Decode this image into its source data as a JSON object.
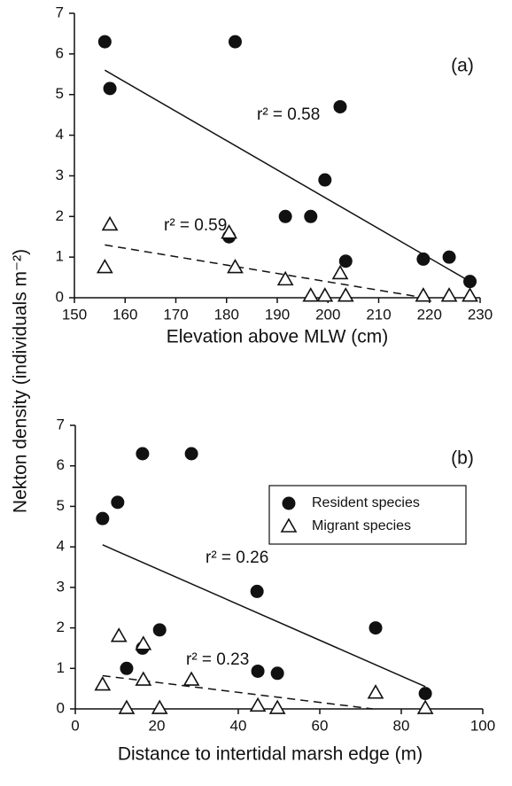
{
  "chart_data": [
    {
      "type": "scatter",
      "panel_label": "(a)",
      "x_label": "Elevation above MLW (cm)",
      "y_label": "Nekton density (individuals m⁻²)",
      "xlim": [
        150,
        230
      ],
      "xticks": [
        150,
        160,
        170,
        180,
        190,
        200,
        210,
        220,
        230
      ],
      "ylim": [
        0,
        7
      ],
      "yticks": [
        0,
        1,
        2,
        3,
        4,
        5,
        6,
        7
      ],
      "series": [
        {
          "marker": "circle",
          "color": "#111111",
          "x": [
            156,
            157,
            180.5,
            181.7,
            191.6,
            196.6,
            199.4,
            202.4,
            203.5,
            218.8,
            223.9,
            228
          ],
          "values": [
            6.3,
            5.15,
            1.5,
            6.3,
            2.0,
            2.0,
            2.9,
            4.7,
            0.9,
            0.95,
            1.0,
            0.4
          ]
        },
        {
          "marker": "triangle",
          "color": "#111111",
          "x": [
            156,
            157,
            180.5,
            181.7,
            191.6,
            196.6,
            199.4,
            202.4,
            203.5,
            218.8,
            223.9,
            228
          ],
          "values": [
            0.75,
            1.8,
            1.6,
            0.75,
            0.45,
            0.05,
            0.05,
            0.6,
            0.05,
            0.05,
            0.05,
            0.05
          ]
        }
      ],
      "trendlines": [
        {
          "dashed": false,
          "x": [
            156,
            228
          ],
          "y": [
            5.6,
            0.4
          ]
        },
        {
          "dashed": true,
          "x": [
            156,
            219
          ],
          "y": [
            1.3,
            0.0
          ]
        }
      ],
      "annotations": [
        "r² = 0.58",
        "r² = 0.59"
      ]
    },
    {
      "type": "scatter",
      "panel_label": "(b)",
      "x_label": "Distance to intertidal marsh edge (m)",
      "xlim": [
        0,
        100
      ],
      "xticks": [
        0,
        20,
        40,
        60,
        80,
        100
      ],
      "ylim": [
        0,
        7
      ],
      "yticks": [
        0,
        1,
        2,
        3,
        4,
        5,
        6,
        7
      ],
      "legend": "upper right",
      "series": [
        {
          "name": "Resident species",
          "marker": "circle",
          "color": "#111111",
          "x": [
            6.7,
            10.4,
            16.5,
            28.5,
            20.7,
            16.5,
            12.6,
            44.6,
            44.8,
            49.6,
            73.7,
            85.9
          ],
          "values": [
            4.7,
            5.1,
            6.3,
            6.3,
            1.95,
            1.5,
            1.0,
            2.9,
            0.93,
            0.88,
            2.0,
            0.38
          ]
        },
        {
          "name": "Migrant species",
          "marker": "triangle",
          "color": "#111111",
          "x": [
            6.7,
            10.7,
            16.7,
            16.7,
            12.6,
            20.7,
            28.5,
            44.8,
            49.6,
            73.7,
            85.9
          ],
          "values": [
            0.6,
            1.8,
            1.6,
            0.72,
            0.02,
            0.02,
            0.72,
            0.08,
            0.02,
            0.4,
            0.02
          ]
        }
      ],
      "trendlines": [
        {
          "dashed": false,
          "x": [
            6.7,
            85.9
          ],
          "y": [
            4.05,
            0.55
          ]
        },
        {
          "dashed": true,
          "x": [
            6.7,
            73
          ],
          "y": [
            0.82,
            0.0
          ]
        }
      ],
      "annotations": [
        "r² = 0.26",
        "r² = 0.23"
      ]
    }
  ]
}
